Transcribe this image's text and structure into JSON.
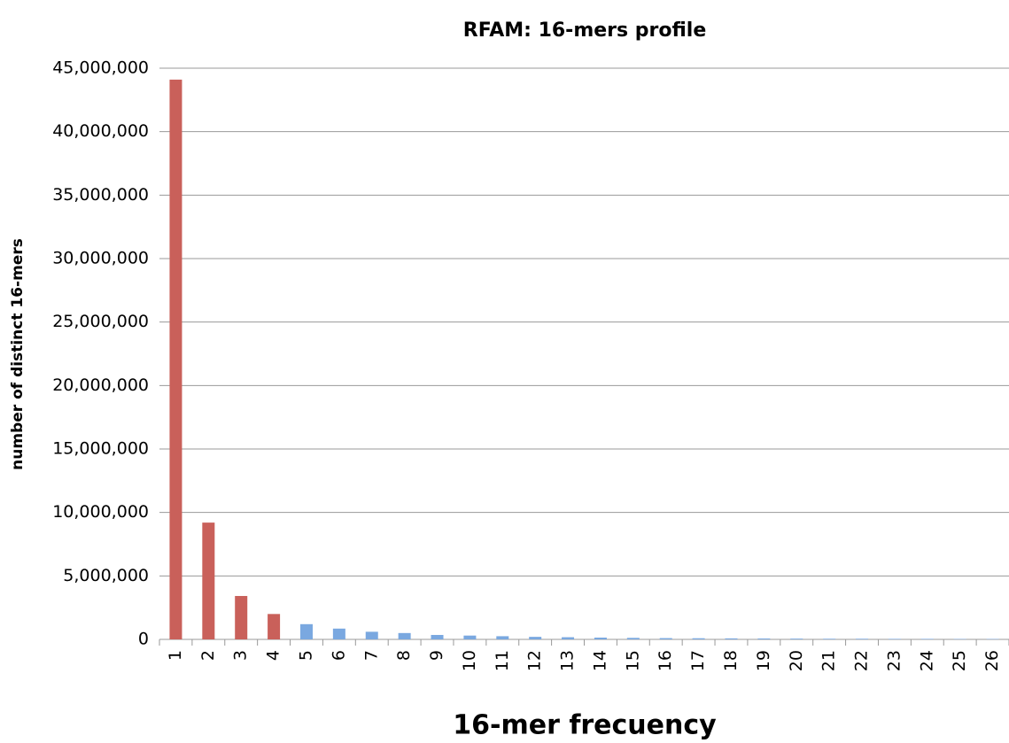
{
  "chart_data": {
    "type": "bar",
    "title": "RFAM: 16-mers  profile",
    "x_label": "16-mer frecuency",
    "y_label": "number of distinct 16-mers",
    "categories": [
      "1",
      "2",
      "3",
      "4",
      "5",
      "6",
      "7",
      "8",
      "9",
      "10",
      "11",
      "12",
      "13",
      "14",
      "15",
      "16",
      "17",
      "18",
      "19",
      "20",
      "21",
      "22",
      "23",
      "24",
      "25",
      "26"
    ],
    "values": [
      44100000,
      9200000,
      3420000,
      2000000,
      1200000,
      850000,
      600000,
      500000,
      350000,
      300000,
      250000,
      200000,
      170000,
      140000,
      120000,
      100000,
      90000,
      80000,
      70000,
      60000,
      50000,
      50000,
      40000,
      40000,
      30000,
      30000
    ],
    "colors": [
      "#c9605a",
      "#c9605a",
      "#c9605a",
      "#c9605a",
      "#7aa8e0",
      "#7aa8e0",
      "#7aa8e0",
      "#7aa8e0",
      "#7aa8e0",
      "#7aa8e0",
      "#7aa8e0",
      "#7aa8e0",
      "#7aa8e0",
      "#7aa8e0",
      "#7aa8e0",
      "#7aa8e0",
      "#7aa8e0",
      "#7aa8e0",
      "#7aa8e0",
      "#7aa8e0",
      "#7aa8e0",
      "#7aa8e0",
      "#7aa8e0",
      "#7aa8e0",
      "#7aa8e0",
      "#7aa8e0"
    ],
    "ylim": [
      0,
      45000000
    ],
    "yticks": [
      0,
      {
        "value": 5000000,
        "label": "5,000,000"
      },
      {
        "value": 10000000,
        "label": "10,000,000"
      },
      {
        "value": 15000000,
        "label": "15,000,000"
      },
      {
        "value": 20000000,
        "label": "20,000,000"
      },
      {
        "value": 25000000,
        "label": "25,000,000"
      },
      {
        "value": 30000000,
        "label": "30,000,000"
      },
      {
        "value": 35000000,
        "label": "35,000,000"
      },
      {
        "value": 40000000,
        "label": "40,000,000"
      },
      {
        "value": 45000000,
        "label": "45,000,000"
      }
    ],
    "grid": true
  }
}
